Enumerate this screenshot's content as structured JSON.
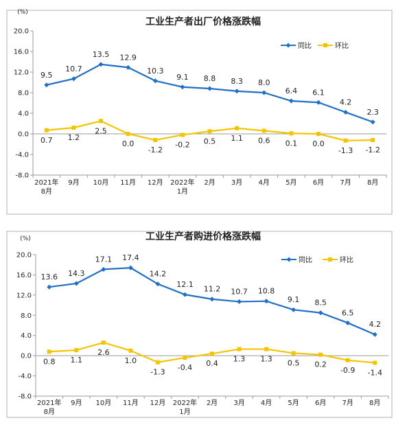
{
  "colors": {
    "yoy": "#1f6fc5",
    "mom": "#f5c400",
    "frame": "#b0b0b0",
    "text": "#222222"
  },
  "chart_data": [
    {
      "type": "line",
      "title": "工业生产者出厂价格涨跌幅",
      "ylabel": "(%)",
      "ylim": [
        -8.0,
        20.0
      ],
      "yticks": [
        "20.0",
        "16.0",
        "12.0",
        "8.0",
        "4.0",
        "0.0",
        "-4.0",
        "-8.0"
      ],
      "ytick_values": [
        20,
        16,
        12,
        8,
        4,
        0,
        -4,
        -8
      ],
      "categories": [
        [
          "2021年",
          "8月"
        ],
        [
          "9月"
        ],
        [
          "10月"
        ],
        [
          "11月"
        ],
        [
          "12月"
        ],
        [
          "2022年",
          "1月"
        ],
        [
          "2月"
        ],
        [
          "3月"
        ],
        [
          "4月"
        ],
        [
          "5月"
        ],
        [
          "6月"
        ],
        [
          "7月"
        ],
        [
          "8月"
        ]
      ],
      "legend_position": "top-right",
      "grid": false,
      "series": [
        {
          "name": "同比",
          "color": "#1f6fc5",
          "values": [
            9.5,
            10.7,
            13.5,
            12.9,
            10.3,
            9.1,
            8.8,
            8.3,
            8.0,
            6.4,
            6.1,
            4.2,
            2.3
          ],
          "labels": [
            "9.5",
            "10.7",
            "13.5",
            "12.9",
            "10.3",
            "9.1",
            "8.8",
            "8.3",
            "8.0",
            "6.4",
            "6.1",
            "4.2",
            "2.3"
          ]
        },
        {
          "name": "环比",
          "color": "#f5c400",
          "values": [
            0.7,
            1.2,
            2.5,
            0.0,
            -1.2,
            -0.2,
            0.5,
            1.1,
            0.6,
            0.1,
            0.0,
            -1.3,
            -1.2
          ],
          "labels": [
            "0.7",
            "1.2",
            "2.5",
            "0.0",
            "-1.2",
            "-0.2",
            "0.5",
            "1.1",
            "0.6",
            "0.1",
            "0.0",
            "-1.3",
            "-1.2"
          ]
        }
      ]
    },
    {
      "type": "line",
      "title": "工业生产者购进价格涨跌幅",
      "ylabel": "(%)",
      "ylim": [
        -8.0,
        20.0
      ],
      "yticks": [
        "20.0",
        "16.0",
        "12.0",
        "8.0",
        "4.0",
        "0.0",
        "-4.0",
        "-8.0"
      ],
      "ytick_values": [
        20,
        16,
        12,
        8,
        4,
        0,
        -4,
        -8
      ],
      "categories": [
        [
          "2021年",
          "8月"
        ],
        [
          "9月"
        ],
        [
          "10月"
        ],
        [
          "11月"
        ],
        [
          "12月"
        ],
        [
          "2022年",
          "1月"
        ],
        [
          "2月"
        ],
        [
          "3月"
        ],
        [
          "4月"
        ],
        [
          "5月"
        ],
        [
          "6月"
        ],
        [
          "7月"
        ],
        [
          "8月"
        ]
      ],
      "legend_position": "top-right",
      "grid": false,
      "series": [
        {
          "name": "同比",
          "color": "#1f6fc5",
          "values": [
            13.6,
            14.3,
            17.1,
            17.4,
            14.2,
            12.1,
            11.2,
            10.7,
            10.8,
            9.1,
            8.5,
            6.5,
            4.2
          ],
          "labels": [
            "13.6",
            "14.3",
            "17.1",
            "17.4",
            "14.2",
            "12.1",
            "11.2",
            "10.7",
            "10.8",
            "9.1",
            "8.5",
            "6.5",
            "4.2"
          ]
        },
        {
          "name": "环比",
          "color": "#f5c400",
          "values": [
            0.8,
            1.1,
            2.6,
            1.0,
            -1.3,
            -0.4,
            0.4,
            1.3,
            1.3,
            0.5,
            0.2,
            -0.9,
            -1.4
          ],
          "labels": [
            "0.8",
            "1.1",
            "2.6",
            "1.0",
            "-1.3",
            "-0.4",
            "0.4",
            "1.3",
            "1.3",
            "0.5",
            "0.2",
            "-0.9",
            "-1.4"
          ]
        }
      ]
    }
  ]
}
